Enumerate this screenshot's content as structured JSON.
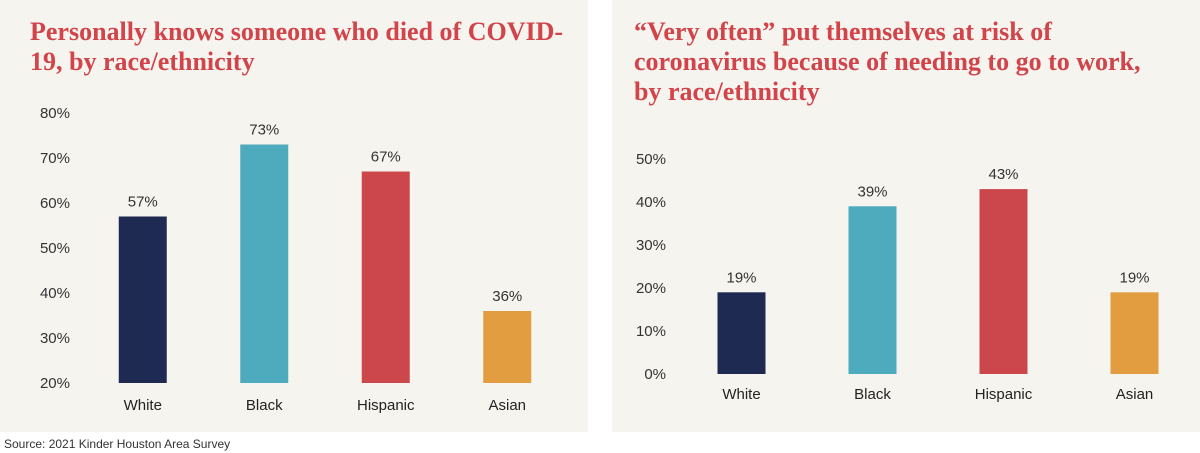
{
  "source": "Source: 2021 Kinder Houston Area Survey",
  "chart_data": [
    {
      "type": "bar",
      "title": "Personally knows someone who died of COVID-19, by race/ethnicity",
      "categories": [
        "White",
        "Black",
        "Hispanic",
        "Asian"
      ],
      "values": [
        57,
        73,
        67,
        36
      ],
      "value_labels": [
        "57%",
        "73%",
        "67%",
        "36%"
      ],
      "colors": [
        "#1e2a52",
        "#4eabbd",
        "#cc474c",
        "#e19d3f"
      ],
      "ylim": [
        20,
        80
      ],
      "yticks": [
        20,
        30,
        40,
        50,
        60,
        70,
        80
      ],
      "ytick_labels": [
        "20%",
        "30%",
        "40%",
        "50%",
        "60%",
        "70%",
        "80%"
      ],
      "grid": false,
      "legend": "none"
    },
    {
      "type": "bar",
      "title": "“Very often” put themselves at risk of coronavirus because of needing to go to work, by race/ethnicity",
      "categories": [
        "White",
        "Black",
        "Hispanic",
        "Asian"
      ],
      "values": [
        19,
        39,
        43,
        19
      ],
      "value_labels": [
        "19%",
        "39%",
        "43%",
        "19%"
      ],
      "colors": [
        "#1e2a52",
        "#4eabbd",
        "#cc474c",
        "#e19d3f"
      ],
      "ylim": [
        0,
        50
      ],
      "yticks": [
        0,
        10,
        20,
        30,
        40,
        50
      ],
      "ytick_labels": [
        "0%",
        "10%",
        "20%",
        "30%",
        "40%",
        "50%"
      ],
      "grid": false,
      "legend": "none"
    }
  ]
}
